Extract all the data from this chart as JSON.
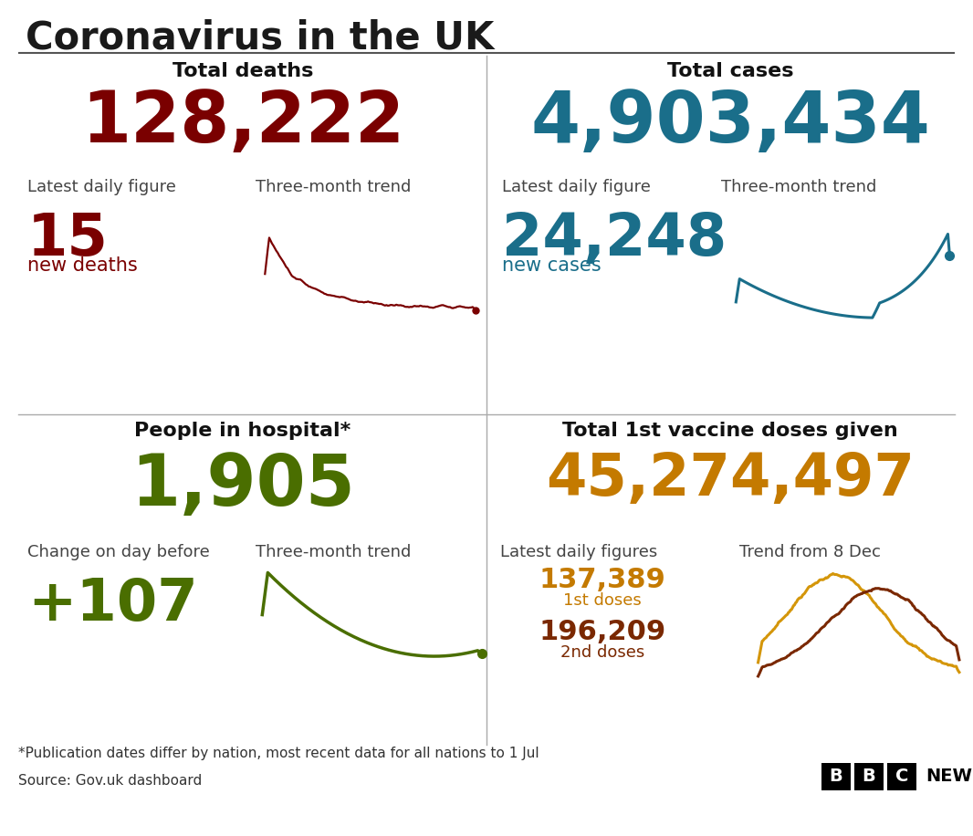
{
  "title": "Coronavirus in the UK",
  "bg_color": "#ffffff",
  "title_color": "#1a1a1a",
  "divider_color": "#aaaaaa",
  "panel_tl": {
    "heading": "Total deaths",
    "big_number": "128,222",
    "big_color": "#7a0000",
    "label1": "Latest daily figure",
    "label2": "Three-month trend",
    "daily_number": "15",
    "daily_label": "new deaths",
    "daily_color": "#7a0000",
    "trend_color": "#7a0000"
  },
  "panel_tr": {
    "heading": "Total cases",
    "big_number": "4,903,434",
    "big_color": "#1a6e8a",
    "label1": "Latest daily figure",
    "label2": "Three-month trend",
    "daily_number": "24,248",
    "daily_label": "new cases",
    "daily_color": "#1a6e8a",
    "trend_color": "#1a6e8a"
  },
  "panel_bl": {
    "heading": "People in hospital*",
    "big_number": "1,905",
    "big_color": "#4a6e00",
    "label1": "Change on day before",
    "label2": "Three-month trend",
    "daily_number": "+107",
    "daily_color": "#4a6e00",
    "trend_color": "#4a6e00"
  },
  "panel_br": {
    "heading": "Total 1st vaccine doses given",
    "big_number": "45,274,497",
    "big_color": "#c47a00",
    "label1": "Latest daily figures",
    "label2": "Trend from 8 Dec",
    "dose1_number": "137,389",
    "dose1_label": "1st doses",
    "dose1_color": "#c47a00",
    "dose2_number": "196,209",
    "dose2_label": "2nd doses",
    "dose2_color": "#7a2800",
    "trend_color1": "#d4960a",
    "trend_color2": "#7a2800"
  },
  "footer_note": "*Publication dates differ by nation, most recent data for all nations to 1 Jul",
  "footer_source": "Source: Gov.uk dashboard",
  "label_color": "#444444",
  "heading_color": "#111111"
}
